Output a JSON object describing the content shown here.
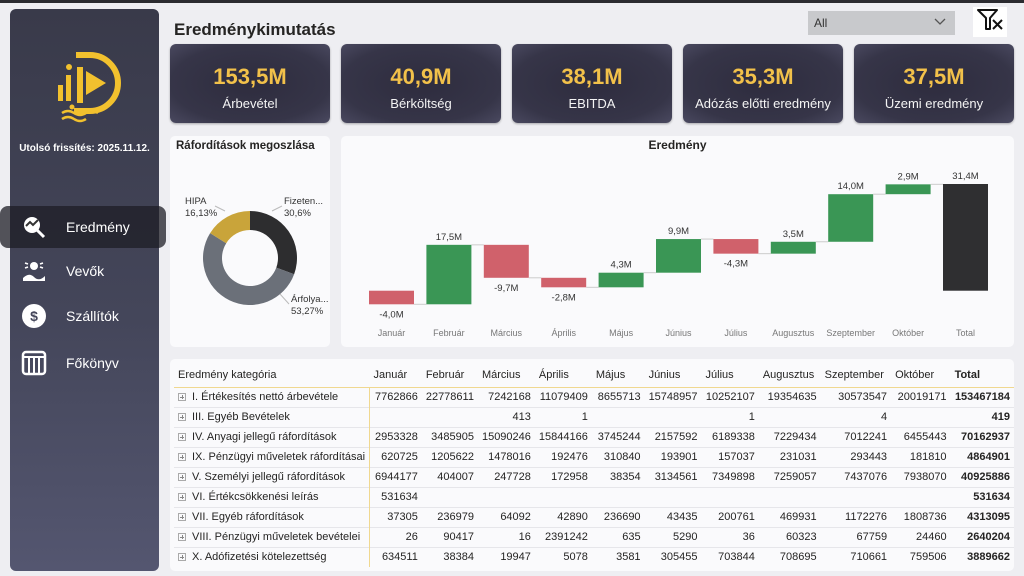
{
  "sidebar": {
    "last_refresh": "Utolsó frissítés: 2025.11.12.",
    "brand_color": "#f2c12e",
    "items": [
      {
        "label": "Eredmény",
        "icon": "chart-search-icon",
        "active": true
      },
      {
        "label": "Vevők",
        "icon": "customers-icon",
        "active": false
      },
      {
        "label": "Szállítók",
        "icon": "dollar-icon",
        "active": false
      },
      {
        "label": "Főkönyv",
        "icon": "ledger-icon",
        "active": false
      }
    ]
  },
  "header": {
    "title": "Eredménykimutatás",
    "filter_value": "All",
    "clear_filter_icon": "clear-filter-icon"
  },
  "kpis": [
    {
      "value": "153,5M",
      "label": "Árbevétel"
    },
    {
      "value": "40,9M",
      "label": "Bérköltség"
    },
    {
      "value": "38,1M",
      "label": "EBITDA"
    },
    {
      "value": "35,3M",
      "label": "Adózás előtti eredmény"
    },
    {
      "value": "37,5M",
      "label": "Üzemi eredmény"
    }
  ],
  "donut": {
    "title": "Ráfordítások megoszlása",
    "slices": [
      {
        "label": "Fizeten...",
        "pct_label": "30,6%",
        "value": 30.6,
        "color": "#2d2d2f"
      },
      {
        "label": "Árfolya...",
        "pct_label": "53,27%",
        "value": 53.27,
        "color": "#6b7079"
      },
      {
        "label": "HIPA",
        "pct_label": "16,13%",
        "value": 16.13,
        "color": "#c9a43a"
      }
    ]
  },
  "chart_data": {
    "type": "waterfall",
    "title": "Eredmény",
    "categories": [
      "Január",
      "Február",
      "Március",
      "Április",
      "Május",
      "Június",
      "Július",
      "Augusztus",
      "Szeptember",
      "Október",
      "Total"
    ],
    "values": [
      -4.0,
      17.5,
      -9.7,
      -2.8,
      4.3,
      9.9,
      -4.3,
      3.5,
      14.0,
      2.9,
      31.4
    ],
    "labels": [
      "-4,0M",
      "17,5M",
      "-9,7M",
      "-2,8M",
      "4,3M",
      "9,9M",
      "-4,3M",
      "3,5M",
      "14,0M",
      "2,9M",
      "31,4M"
    ],
    "unit": "M",
    "colors": {
      "increase": "#3a9655",
      "decrease": "#d0616b",
      "total": "#2f2f31"
    },
    "xlabel": "",
    "ylabel": ""
  },
  "table": {
    "headers": [
      "Eredmény kategória",
      "Január",
      "Február",
      "Március",
      "Április",
      "Május",
      "Június",
      "Július",
      "Augusztus",
      "Szeptember",
      "Október",
      "Total"
    ],
    "rows": [
      [
        "I. Értékesítés nettó árbevétele",
        "7762866",
        "22778611",
        "7242168",
        "11079409",
        "8655713",
        "15748957",
        "10252107",
        "19354635",
        "30573547",
        "20019171",
        "153467184"
      ],
      [
        "III. Egyéb Bevételek",
        "",
        "",
        "413",
        "1",
        "",
        "",
        "1",
        "",
        "4",
        "",
        "419"
      ],
      [
        "IV. Anyagi jellegű ráfordítások",
        "2953328",
        "3485905",
        "15090246",
        "15844166",
        "3745244",
        "2157592",
        "6189338",
        "7229434",
        "7012241",
        "6455443",
        "70162937"
      ],
      [
        "IX. Pénzügyi műveletek ráfordításai",
        "620725",
        "1205622",
        "1478016",
        "192476",
        "310840",
        "193901",
        "157037",
        "231031",
        "293443",
        "181810",
        "4864901"
      ],
      [
        "V. Személyi jellegű ráfordítások",
        "6944177",
        "404007",
        "247728",
        "172958",
        "38354",
        "3134561",
        "7349898",
        "7259057",
        "7437076",
        "7938070",
        "40925886"
      ],
      [
        "VI. Értékcsökkenési leírás",
        "531634",
        "",
        "",
        "",
        "",
        "",
        "",
        "",
        "",
        "",
        "531634"
      ],
      [
        "VII. Egyéb ráfordítások",
        "37305",
        "236979",
        "64092",
        "42890",
        "236690",
        "43435",
        "200761",
        "469931",
        "1172276",
        "1808736",
        "4313095"
      ],
      [
        "VIII. Pénzügyi műveletek bevételei",
        "26",
        "90417",
        "16",
        "2391242",
        "635",
        "5290",
        "36",
        "60323",
        "67759",
        "24460",
        "2640204"
      ],
      [
        "X. Adófizetési kötelezettség",
        "634511",
        "38384",
        "19947",
        "5078",
        "3581",
        "305455",
        "703844",
        "708695",
        "710661",
        "759506",
        "3889662"
      ]
    ]
  }
}
